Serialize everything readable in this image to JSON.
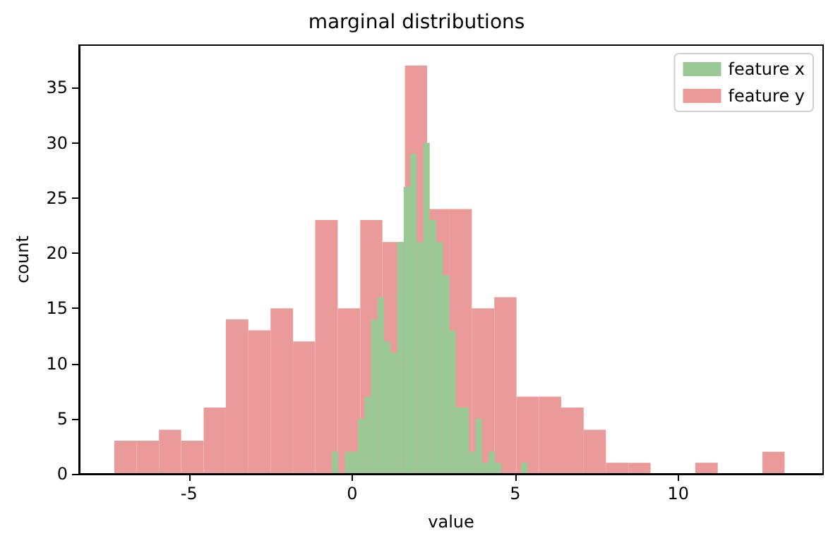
{
  "chart_data": {
    "type": "histogram",
    "title": "marginal distributions",
    "xlabel": "value",
    "ylabel": "count",
    "series": [
      {
        "name": "feature x",
        "color": "#9bc995",
        "bins": [
          -0.62,
          -0.42,
          -0.22,
          -0.02,
          0.18,
          0.38,
          0.58,
          0.78,
          0.98,
          1.18,
          1.38,
          1.58,
          1.78,
          1.98,
          2.18,
          2.38,
          2.58,
          2.78,
          2.98,
          3.18,
          3.38,
          3.58,
          3.78,
          3.98,
          4.18,
          4.38,
          4.58,
          4.78,
          4.98,
          5.18,
          5.38
        ],
        "values": [
          2,
          0,
          2,
          2,
          5,
          7,
          14,
          16,
          12,
          11,
          21,
          26,
          29,
          21,
          30,
          23,
          21,
          18,
          13,
          6,
          6,
          2,
          5,
          1,
          2,
          1,
          0,
          0,
          0,
          1
        ]
      },
      {
        "name": "feature y",
        "color": "#eb9a9a",
        "values": [
          3,
          3,
          4,
          3,
          6,
          14,
          13,
          15,
          12,
          23,
          15,
          23,
          21,
          37,
          24,
          24,
          15,
          16,
          7,
          7,
          6,
          4,
          1,
          1,
          0,
          0,
          1,
          0,
          0,
          2
        ]
      }
    ],
    "bins": [
      -7.29,
      -6.61,
      -5.92,
      -5.24,
      -4.55,
      -3.87,
      -3.18,
      -2.5,
      -1.81,
      -1.13,
      -0.44,
      0.25,
      0.93,
      1.62,
      2.3,
      2.99,
      3.67,
      4.36,
      5.04,
      5.73,
      6.41,
      7.1,
      7.78,
      8.47,
      9.15,
      9.84,
      10.52,
      11.21,
      11.89,
      12.58,
      13.26
    ],
    "xlim": [
      -8.37,
      14.44
    ],
    "xticks": [
      -5,
      0,
      5,
      10
    ],
    "ylim": [
      0,
      38.85
    ],
    "yticks": [
      0,
      5,
      10,
      15,
      20,
      25,
      30,
      35
    ],
    "grid": false,
    "legend": "top right"
  }
}
